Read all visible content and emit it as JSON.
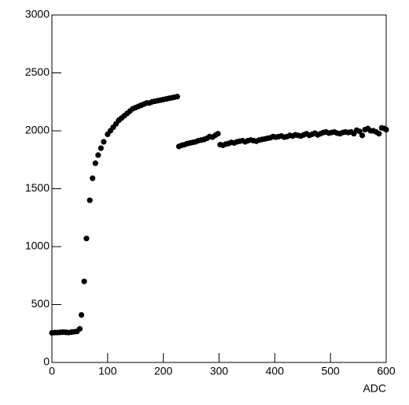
{
  "chart_data": {
    "type": "scatter",
    "x_label": "ADC",
    "x": [
      0,
      5,
      10,
      15,
      20,
      25,
      30,
      35,
      40,
      45,
      50,
      53,
      58,
      62,
      68,
      73,
      78,
      83,
      88,
      93,
      100,
      105,
      110,
      115,
      120,
      125,
      130,
      135,
      140,
      145,
      150,
      155,
      160,
      165,
      170,
      175,
      180,
      185,
      190,
      195,
      200,
      205,
      210,
      215,
      220,
      225,
      228,
      233,
      238,
      243,
      248,
      253,
      258,
      263,
      268,
      273,
      278,
      283,
      288,
      293,
      298,
      302,
      307,
      312,
      317,
      322,
      327,
      332,
      337,
      342,
      347,
      352,
      357,
      362,
      367,
      372,
      377,
      382,
      387,
      392,
      397,
      402,
      407,
      412,
      417,
      422,
      427,
      432,
      437,
      442,
      447,
      452,
      457,
      462,
      467,
      472,
      477,
      482,
      487,
      492,
      497,
      502,
      507,
      512,
      517,
      522,
      527,
      532,
      537,
      542,
      547,
      552,
      557,
      562,
      567,
      572,
      577,
      582,
      587,
      592,
      597,
      600
    ],
    "values": [
      255,
      258,
      258,
      260,
      262,
      260,
      258,
      262,
      265,
      268,
      290,
      410,
      700,
      1070,
      1400,
      1590,
      1720,
      1790,
      1850,
      1905,
      1970,
      2000,
      2030,
      2060,
      2090,
      2110,
      2130,
      2150,
      2170,
      2190,
      2200,
      2210,
      2220,
      2230,
      2240,
      2240,
      2250,
      2255,
      2260,
      2265,
      2270,
      2275,
      2280,
      2285,
      2290,
      2295,
      1865,
      1875,
      1880,
      1890,
      1895,
      1900,
      1905,
      1915,
      1920,
      1925,
      1935,
      1950,
      1945,
      1960,
      1975,
      1880,
      1875,
      1885,
      1890,
      1900,
      1895,
      1905,
      1910,
      1915,
      1905,
      1915,
      1920,
      1915,
      1910,
      1920,
      1925,
      1930,
      1935,
      1940,
      1950,
      1945,
      1950,
      1955,
      1945,
      1950,
      1960,
      1955,
      1965,
      1960,
      1955,
      1965,
      1975,
      1960,
      1970,
      1980,
      1965,
      1975,
      1985,
      1990,
      1980,
      1985,
      1990,
      1980,
      1975,
      1985,
      1990,
      1985,
      1990,
      1975,
      2005,
      1995,
      1960,
      2010,
      2020,
      2000,
      2000,
      1990,
      1975,
      2025,
      2020,
      2010
    ],
    "color": "#000000",
    "xlim": [
      0,
      600
    ],
    "xticks": [
      0,
      100,
      200,
      300,
      400,
      500,
      600
    ],
    "ylim": [
      0,
      3000
    ],
    "yticks": [
      0,
      500,
      1000,
      1500,
      2000,
      2500,
      3000
    ]
  }
}
